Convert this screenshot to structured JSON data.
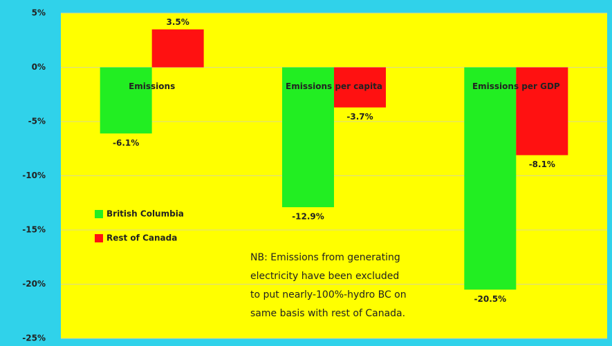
{
  "chart_data": {
    "type": "bar",
    "categories": [
      "Emissions",
      "Emissions per capita",
      "Emissions per GDP"
    ],
    "series": [
      {
        "name": "British Columbia",
        "color": "#22ee22",
        "values": [
          -6.1,
          -12.9,
          -20.5
        ],
        "value_labels": [
          "-6.1%",
          "-12.9%",
          "-20.5%"
        ]
      },
      {
        "name": "Rest of Canada",
        "color": "#ff1111",
        "values": [
          3.5,
          -3.7,
          -8.1
        ],
        "value_labels": [
          "3.5%",
          "-3.7%",
          "-8.1%"
        ]
      }
    ],
    "ylim": [
      -25,
      5
    ],
    "yticks": [
      {
        "value": -25,
        "label": "-25%"
      },
      {
        "value": -20,
        "label": "-20%"
      },
      {
        "value": -15,
        "label": "-15%"
      },
      {
        "value": -10,
        "label": "-10%"
      },
      {
        "value": -5,
        "label": "-5%"
      },
      {
        "value": 0,
        "label": "0%"
      },
      {
        "value": 5,
        "label": "5%"
      }
    ],
    "grid": true,
    "legend": "left",
    "annotation": [
      "NB: Emissions from generating",
      "electricity have been excluded",
      "to put nearly-100%-hydro BC on",
      "same basis with rest of Canada."
    ]
  }
}
